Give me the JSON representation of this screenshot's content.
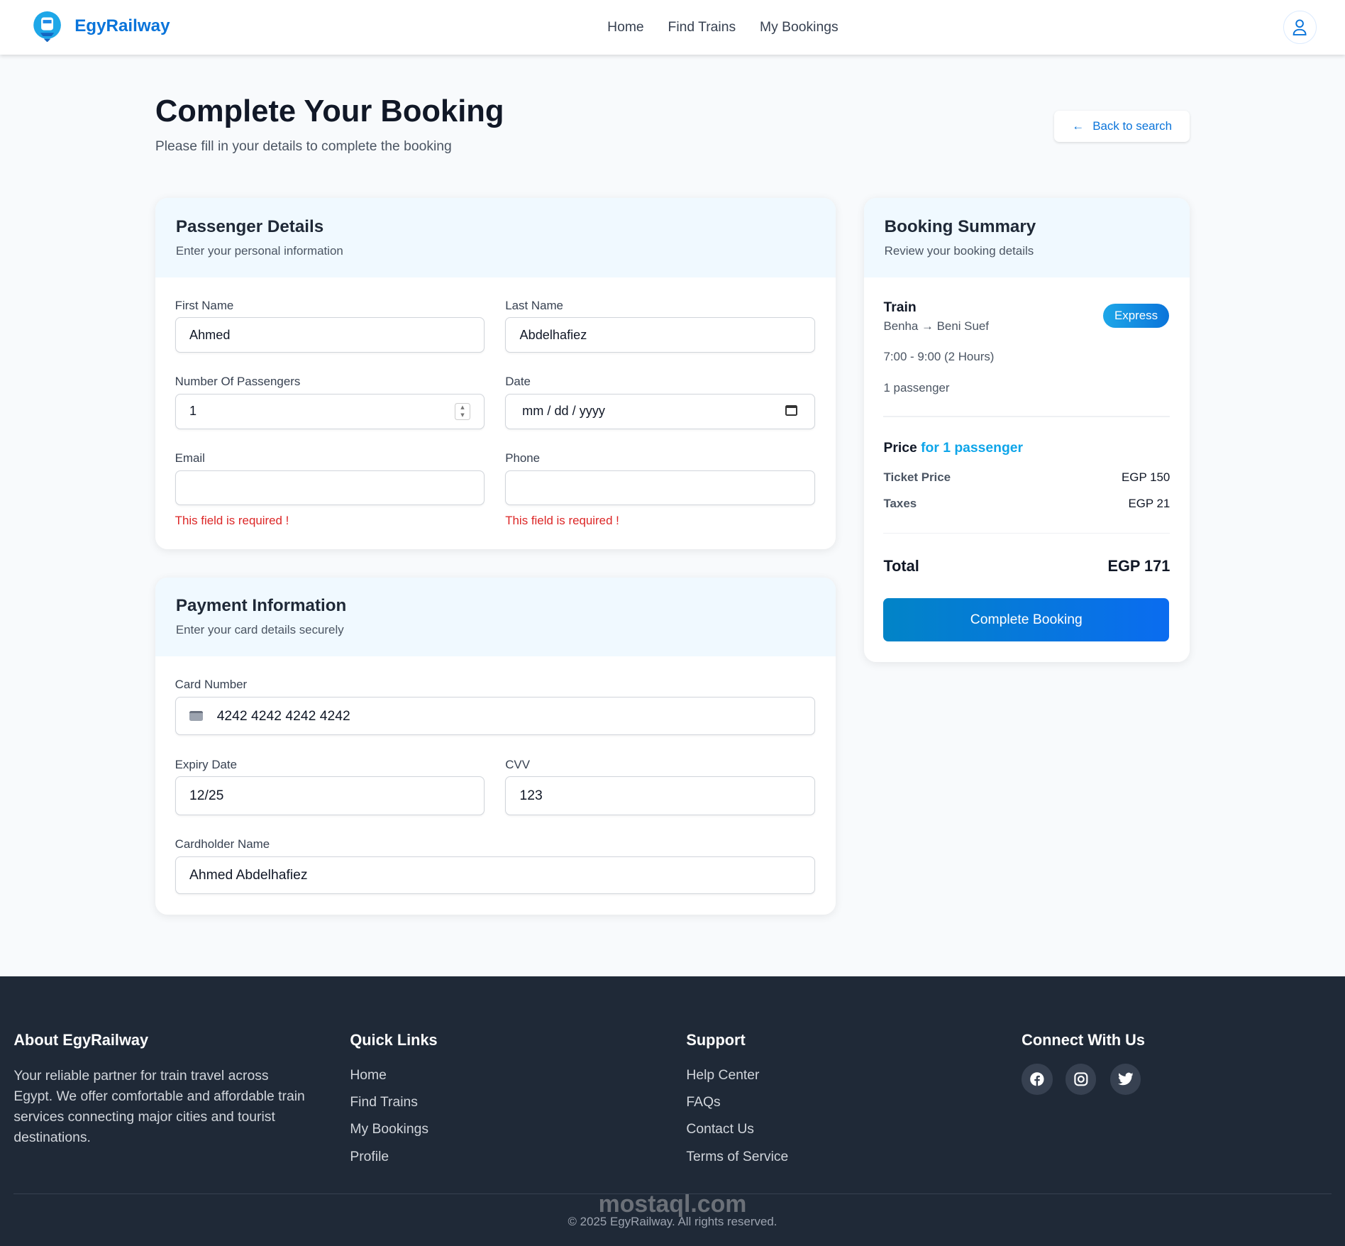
{
  "nav": {
    "brand": "EgyRailway",
    "links": [
      "Home",
      "Find Trains",
      "My Bookings"
    ]
  },
  "page": {
    "title": "Complete Your Booking",
    "subtitle": "Please fill in your details to complete the booking",
    "back_label": "Back to search"
  },
  "passenger": {
    "title": "Passenger Details",
    "subtitle": "Enter your personal information",
    "first_name_label": "First Name",
    "first_name": "Ahmed",
    "last_name_label": "Last Name",
    "last_name": "Abdelhafiez",
    "passengers_label": "Number Of Passengers",
    "passengers": "1",
    "date_label": "Date",
    "date_placeholder": "mm / dd / yyyy",
    "email_label": "Email",
    "email": "",
    "phone_label": "Phone",
    "phone": "",
    "error": "This field is required !"
  },
  "payment": {
    "title": "Payment Information",
    "subtitle": "Enter your card details securely",
    "card_label": "Card Number",
    "card": "4242 4242 4242 4242",
    "expiry_label": "Expiry Date",
    "expiry": "12/25",
    "cvv_label": "CVV",
    "cvv": "123",
    "holder_label": "Cardholder Name",
    "holder": "Ahmed Abdelhafiez"
  },
  "summary": {
    "title": "Booking Summary",
    "subtitle": "Review your booking details",
    "train_label": "Train",
    "route": "Benha → Beni Suef",
    "badge": "Express",
    "time": "7:00 - 9:00 (2 Hours)",
    "passengers": "1 passenger",
    "price_label": "Price",
    "price_for": "for 1 passenger",
    "ticket_label": "Ticket Price",
    "ticket": "EGP 150",
    "taxes_label": "Taxes",
    "taxes": "EGP 21",
    "total_label": "Total",
    "total": "EGP 171",
    "button": "Complete Booking"
  },
  "colors": {
    "accent": "#0a74da",
    "badge": "#0ea5e9",
    "error": "#dc2626",
    "footer": "#1f2937"
  },
  "footer": {
    "about_title": "About EgyRailway",
    "about_text": "Your reliable partner for train travel across Egypt. We offer comfortable and affordable train services connecting major cities and tourist destinations.",
    "quick_title": "Quick Links",
    "quick": [
      "Home",
      "Find Trains",
      "My Bookings",
      "Profile"
    ],
    "support_title": "Support",
    "support": [
      "Help Center",
      "FAQs",
      "Contact Us",
      "Terms of Service"
    ],
    "connect_title": "Connect With Us",
    "copyright": "© 2025 EgyRailway. All rights reserved.",
    "watermark": "mostaql.com"
  }
}
